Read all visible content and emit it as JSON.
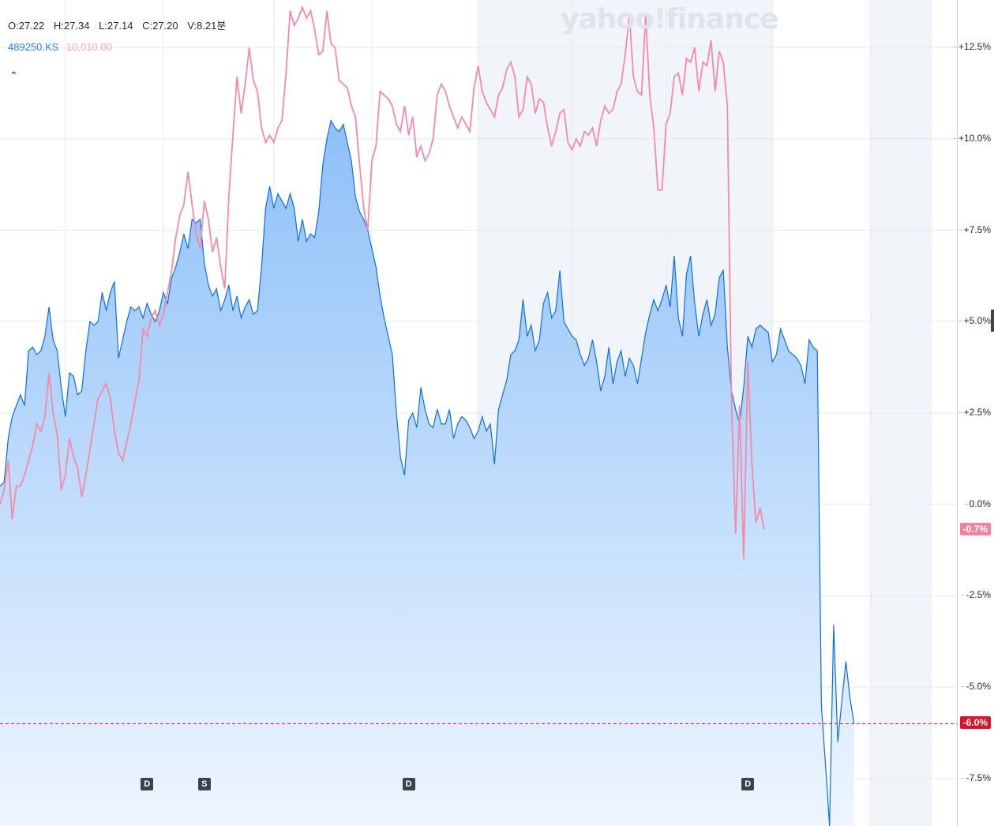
{
  "ohlc": {
    "open": "O:27.22",
    "high": "H:27.34",
    "low": "L:27.14",
    "close": "C:27.20",
    "volume": "V:8.21분"
  },
  "legend": {
    "series1": "489250.KS",
    "series2": "10,010.00"
  },
  "watermark": "yahoo!finance",
  "colors": {
    "series1": "#0b6ee8",
    "series1_fill_top": "#8ec0f8",
    "series1_fill_bottom": "#eef6ff",
    "series2": "#f48aa6",
    "grid": "#e6e9ee",
    "shade": "#f1f4f8",
    "badge_pink": "#f2839c",
    "badge_red": "#e0112b"
  },
  "y_ticks": [
    "+12.5%",
    "+10.0%",
    "+7.5%",
    "+5.0%",
    "+2.5%",
    "0.0%",
    "-2.5%",
    "-5.0%",
    "-7.5%"
  ],
  "badges": {
    "series2_last": "-0.7%",
    "series1_last": "-6.0%"
  },
  "markers": [
    "D",
    "S",
    "D",
    "D"
  ],
  "chart_data": {
    "type": "area",
    "ylim": [
      -8.8,
      13.8
    ],
    "y_unit": "%",
    "grid": true,
    "x_points": 200,
    "shaded_ranges": [
      [
        117,
        189
      ],
      [
        213,
        228
      ]
    ],
    "vertical_gridlines": [
      16,
      40,
      67,
      91,
      117,
      140,
      163,
      189,
      213
    ],
    "marker_positions": [
      36,
      50,
      100,
      183
    ],
    "series": [
      {
        "role": "area",
        "values": [
          0.5,
          0.6,
          1.8,
          2.4,
          2.7,
          3.0,
          2.7,
          4.2,
          4.3,
          4.1,
          4.2,
          4.6,
          5.4,
          4.5,
          4.2,
          3.2,
          2.4,
          3.6,
          3.5,
          3.0,
          3.1,
          4.2,
          5.0,
          4.9,
          5.0,
          5.8,
          5.3,
          5.8,
          6.1,
          4.0,
          4.5,
          5.0,
          5.4,
          5.3,
          5.4,
          5.1,
          5.5,
          5.2,
          5.0,
          5.3,
          5.8,
          5.5,
          6.2,
          6.5,
          6.9,
          7.4,
          7.0,
          7.8,
          7.7,
          7.8,
          6.6,
          6.0,
          5.7,
          5.9,
          5.3,
          5.6,
          6.0,
          5.3,
          5.7,
          5.1,
          5.4,
          5.6,
          5.2,
          5.3,
          6.5,
          8.1,
          8.7,
          8.1,
          8.5,
          8.3,
          8.1,
          8.5,
          8.1,
          7.2,
          7.8,
          7.2,
          7.4,
          7.3,
          8.0,
          9.3,
          10.0,
          10.5,
          10.3,
          10.2,
          10.4,
          9.9,
          9.4,
          8.4,
          8.0,
          7.8,
          7.5,
          7.0,
          6.5,
          5.7,
          5.1,
          4.6,
          4.1,
          2.5,
          1.3,
          0.8,
          2.3,
          2.5,
          2.1,
          3.2,
          2.6,
          2.2,
          2.1,
          2.6,
          2.2,
          2.2,
          2.6,
          1.8,
          2.2,
          2.4,
          2.3,
          2.1,
          1.8,
          2.0,
          2.4,
          2.0,
          2.2,
          1.1,
          2.6,
          3.0,
          3.4,
          4.1,
          4.2,
          4.5,
          5.6,
          4.6,
          4.9,
          4.2,
          4.5,
          5.5,
          5.8,
          5.1,
          5.3,
          6.4,
          5.0,
          4.8,
          4.6,
          4.5,
          4.1,
          3.8,
          4.0,
          4.5,
          3.9,
          3.1,
          3.5,
          4.3,
          3.3,
          3.9,
          4.2,
          3.5,
          4.0,
          3.8,
          3.3,
          4.0,
          4.7,
          5.2,
          5.6,
          5.3,
          5.6,
          6.0,
          5.4,
          6.8,
          5.1,
          4.6,
          6.3,
          6.8,
          5.5,
          4.6,
          5.2,
          5.6,
          4.9,
          5.2,
          6.2,
          6.4,
          4.3,
          3.1,
          2.6,
          2.2,
          3.2,
          4.6,
          4.3,
          4.8,
          4.9,
          4.8,
          4.7,
          3.9,
          4.1,
          4.8,
          4.5,
          4.2,
          4.1,
          4.0,
          3.8,
          3.3,
          4.5,
          4.3,
          4.2,
          -5.5,
          -7.1,
          -8.8,
          -3.3,
          -6.5,
          -5.4,
          -4.3,
          -5.3,
          -6.0
        ],
        "truncate_after_index": 180
      },
      {
        "role": "line",
        "values": [
          0.0,
          0.4,
          1.2,
          -0.4,
          0.5,
          0.5,
          0.8,
          1.2,
          1.6,
          2.2,
          2.0,
          2.4,
          3.6,
          2.5,
          1.9,
          0.4,
          0.8,
          1.8,
          1.3,
          1.0,
          0.2,
          0.8,
          1.5,
          2.2,
          2.9,
          3.1,
          3.3,
          2.9,
          2.0,
          1.4,
          1.2,
          1.7,
          2.2,
          2.8,
          3.4,
          4.8,
          4.6,
          5.1,
          5.3,
          4.9,
          5.2,
          5.8,
          6.4,
          7.3,
          7.9,
          8.2,
          9.1,
          8.2,
          7.4,
          7.0,
          8.3,
          7.8,
          6.9,
          7.3,
          6.5,
          5.9,
          8.4,
          10.1,
          11.7,
          10.7,
          11.5,
          12.5,
          11.6,
          11.3,
          10.3,
          9.9,
          10.1,
          9.9,
          10.3,
          10.5,
          11.8,
          13.5,
          13.1,
          13.3,
          13.6,
          13.3,
          13.5,
          13.0,
          12.3,
          12.4,
          13.5,
          12.6,
          12.5,
          11.6,
          11.5,
          11.4,
          10.9,
          10.6,
          9.3,
          8.1,
          7.5,
          9.4,
          9.8,
          11.3,
          11.2,
          11.1,
          10.9,
          10.4,
          10.2,
          10.9,
          10.1,
          10.6,
          9.5,
          9.8,
          9.4,
          9.6,
          10.0,
          11.2,
          11.5,
          11.3,
          10.9,
          10.6,
          10.3,
          10.6,
          10.4,
          10.2,
          11.4,
          12.0,
          11.3,
          11.0,
          10.8,
          10.6,
          11.2,
          11.4,
          11.9,
          12.1,
          11.7,
          10.6,
          10.8,
          11.7,
          11.5,
          10.7,
          11.1,
          11.0,
          10.3,
          9.8,
          10.2,
          10.7,
          10.8,
          9.9,
          9.7,
          10.0,
          9.8,
          10.2,
          10.1,
          10.3,
          9.8,
          10.5,
          10.9,
          10.7,
          10.8,
          11.3,
          11.5,
          12.3,
          13.4,
          11.7,
          11.3,
          11.2,
          13.4,
          11.2,
          10.3,
          8.6,
          8.6,
          10.4,
          10.7,
          11.7,
          11.8,
          11.2,
          12.2,
          12.1,
          12.5,
          11.3,
          12.1,
          12.0,
          12.7,
          11.3,
          12.4,
          12.1,
          10.9,
          2.8,
          -0.8,
          2.7,
          -1.5,
          3.9,
          1.1,
          -0.5,
          -0.1,
          -0.7
        ],
        "truncate_after_index": 186
      }
    ],
    "last_value_series1": -6.0,
    "last_value_series2": -0.7
  }
}
